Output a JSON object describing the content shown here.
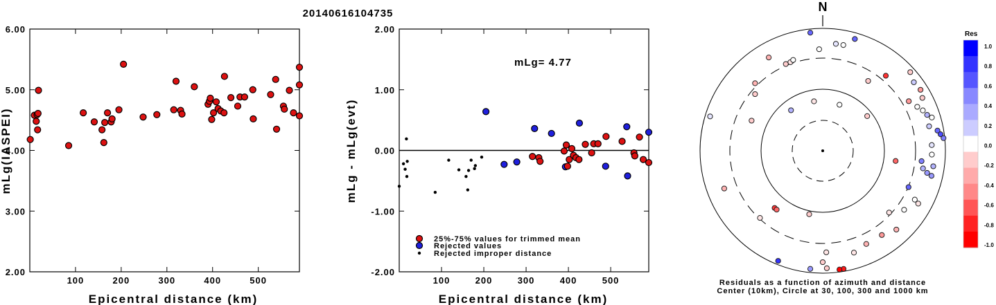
{
  "title": "20140616104735",
  "colors": {
    "accepted": "#dd1111",
    "rejected": "#1f1fdd",
    "improper": "#000000"
  },
  "chart_data": [
    {
      "type": "scatter",
      "title": "",
      "xlabel": "Epicentral distance (km)",
      "ylabel": "mLg(IASPEI)",
      "xlim": [
        0,
        590
      ],
      "ylim": [
        2.0,
        6.0
      ],
      "xticks": [
        "100",
        "200",
        "300",
        "400",
        "500"
      ],
      "xtick_values": [
        100,
        200,
        300,
        400,
        500
      ],
      "yticks": [
        "2.00",
        "3.00",
        "4.00",
        "5.00",
        "6.00"
      ],
      "ytick_values": [
        2,
        3,
        4,
        5,
        6
      ],
      "series": [
        {
          "points": [
            [
              1,
              4.18
            ],
            [
              10,
              4.58
            ],
            [
              14,
              4.48
            ],
            [
              16,
              4.59
            ],
            [
              17,
              4.34
            ],
            [
              18,
              4.61
            ],
            [
              19,
              4.99
            ],
            [
              85,
              4.08
            ],
            [
              117,
              4.62
            ],
            [
              141,
              4.47
            ],
            [
              158,
              4.34
            ],
            [
              162,
              4.13
            ],
            [
              164,
              4.46
            ],
            [
              170,
              4.62
            ],
            [
              178,
              4.47
            ],
            [
              180,
              4.52
            ],
            [
              195,
              4.67
            ],
            [
              205,
              5.42
            ],
            [
              248,
              4.55
            ],
            [
              278,
              4.59
            ],
            [
              315,
              4.67
            ],
            [
              320,
              5.14
            ],
            [
              330,
              4.66
            ],
            [
              333,
              4.6
            ],
            [
              360,
              5.05
            ],
            [
              390,
              4.76
            ],
            [
              393,
              4.81
            ],
            [
              395,
              4.86
            ],
            [
              398,
              4.51
            ],
            [
              402,
              4.62
            ],
            [
              408,
              4.8
            ],
            [
              412,
              4.69
            ],
            [
              418,
              4.65
            ],
            [
              425,
              4.62
            ],
            [
              426,
              5.22
            ],
            [
              440,
              4.87
            ],
            [
              455,
              4.73
            ],
            [
              460,
              4.88
            ],
            [
              470,
              4.88
            ],
            [
              488,
              5.0
            ],
            [
              489,
              4.52
            ],
            [
              527,
              4.92
            ],
            [
              538,
              5.17
            ],
            [
              540,
              4.35
            ],
            [
              555,
              4.73
            ],
            [
              557,
              4.68
            ],
            [
              568,
              4.99
            ],
            [
              577,
              4.62
            ],
            [
              590,
              5.08
            ],
            [
              592,
              5.37
            ],
            [
              592,
              4.57
            ]
          ]
        }
      ]
    },
    {
      "type": "scatter",
      "title": "",
      "xlabel": "Epicentral distance (km)",
      "ylabel": "mLg - mLg(evt)",
      "annotation": "mLg= 4.77",
      "xlim": [
        0,
        590
      ],
      "ylim": [
        -2.0,
        2.0
      ],
      "xticks": [
        "100",
        "200",
        "300",
        "400",
        "500"
      ],
      "xtick_values": [
        100,
        200,
        300,
        400,
        500
      ],
      "yticks": [
        "-2.00",
        "-1.00",
        "0.00",
        "1.00",
        "2.00"
      ],
      "ytick_values": [
        -2,
        -1,
        0,
        1,
        2
      ],
      "legend": [
        {
          "label": "25%-75% values for trimmed mean",
          "kind": "accepted"
        },
        {
          "label": "Rejected values",
          "kind": "rejected"
        },
        {
          "label": "Rejected improper distance",
          "kind": "improper"
        }
      ],
      "series": [
        {
          "kind": "improper",
          "points": [
            [
              0,
              -0.59
            ],
            [
              10,
              -0.22
            ],
            [
              14,
              -0.31
            ],
            [
              17,
              0.19
            ],
            [
              18,
              -0.43
            ],
            [
              19,
              -0.18
            ],
            [
              85,
              -0.69
            ],
            [
              117,
              -0.16
            ],
            [
              141,
              -0.32
            ],
            [
              158,
              -0.43
            ],
            [
              162,
              -0.65
            ],
            [
              164,
              -0.33
            ],
            [
              170,
              -0.16
            ],
            [
              178,
              -0.3
            ],
            [
              180,
              -0.25
            ],
            [
              195,
              -0.11
            ]
          ]
        },
        {
          "kind": "rejected",
          "points": [
            [
              205,
              0.64
            ],
            [
              248,
              -0.23
            ],
            [
              278,
              -0.19
            ],
            [
              320,
              0.36
            ],
            [
              360,
              0.28
            ],
            [
              393,
              -0.27
            ],
            [
              426,
              0.45
            ],
            [
              488,
              -0.26
            ],
            [
              538,
              0.39
            ],
            [
              540,
              -0.42
            ],
            [
              590,
              0.3
            ]
          ]
        },
        {
          "kind": "accepted",
          "points": [
            [
              315,
              -0.1
            ],
            [
              330,
              -0.12
            ],
            [
              333,
              -0.18
            ],
            [
              390,
              -0.01
            ],
            [
              395,
              0.09
            ],
            [
              398,
              -0.26
            ],
            [
              402,
              -0.15
            ],
            [
              408,
              0.03
            ],
            [
              412,
              -0.08
            ],
            [
              418,
              -0.12
            ],
            [
              425,
              -0.15
            ],
            [
              440,
              0.1
            ],
            [
              455,
              -0.04
            ],
            [
              460,
              0.11
            ],
            [
              470,
              0.11
            ],
            [
              489,
              0.23
            ],
            [
              527,
              0.15
            ],
            [
              555,
              -0.04
            ],
            [
              557,
              -0.09
            ],
            [
              568,
              0.22
            ],
            [
              577,
              -0.15
            ],
            [
              590,
              -0.2
            ]
          ]
        }
      ]
    },
    {
      "type": "polar",
      "north_label": "N",
      "caption_line1": "Residuals as a function of azimuth and distance",
      "caption_line2": "Center (10km), Circle at 30, 100, 300 and 1000 km",
      "colorbar": {
        "title": "Res",
        "labels": [
          "1.0",
          "0.8",
          "0.6",
          "0.4",
          "0.2",
          "0.0",
          "-0.2",
          "-0.4",
          "-0.6",
          "-0.8",
          "-1.0"
        ],
        "colors": [
          "#0000ff",
          "#3333ff",
          "#5555ff",
          "#8888ff",
          "#aaaaff",
          "#ccccff",
          "#ffffff",
          "#ffcccc",
          "#ffaaaa",
          "#ff8888",
          "#ff5555",
          "#ff2222",
          "#ff0000"
        ]
      },
      "stations": [
        {
          "az": 0,
          "r": 0.0,
          "res": 0.0
        },
        {
          "az": 350,
          "r": 0.41,
          "res": -0.1
        },
        {
          "az": 20,
          "r": 0.4,
          "res": 0.0
        },
        {
          "az": 52,
          "r": 0.46,
          "res": -0.2
        },
        {
          "az": 322,
          "r": 0.42,
          "res": 0.3
        },
        {
          "az": 98,
          "r": 0.6,
          "res": -0.6
        },
        {
          "az": 192,
          "r": 0.53,
          "res": -0.2
        },
        {
          "az": 178,
          "r": 0.83,
          "res": -0.1
        },
        {
          "az": 358,
          "r": 0.83,
          "res": 0.0
        },
        {
          "az": 354,
          "r": 0.97,
          "res": 0.6
        },
        {
          "az": 16,
          "r": 0.95,
          "res": 0.6
        },
        {
          "az": 7,
          "r": 0.88,
          "res": 0.1
        },
        {
          "az": 11,
          "r": 0.88,
          "res": 0.0
        },
        {
          "az": 330,
          "r": 0.88,
          "res": -0.3
        },
        {
          "az": 337,
          "r": 0.77,
          "res": -0.2
        },
        {
          "az": 340,
          "r": 0.77,
          "res": -0.1
        },
        {
          "az": 342,
          "r": 0.78,
          "res": 0.0
        },
        {
          "az": 315,
          "r": 0.78,
          "res": -0.3
        },
        {
          "az": 33,
          "r": 0.68,
          "res": -0.2
        },
        {
          "az": 40,
          "r": 0.8,
          "res": -0.8
        },
        {
          "az": 48,
          "r": 0.96,
          "res": -0.2
        },
        {
          "az": 53,
          "r": 0.93,
          "res": 0.2
        },
        {
          "az": 58,
          "r": 0.94,
          "res": -0.4
        },
        {
          "az": 60,
          "r": 0.81,
          "res": -0.4
        },
        {
          "az": 62,
          "r": 0.92,
          "res": -0.2
        },
        {
          "az": 65,
          "r": 0.85,
          "res": 0.0
        },
        {
          "az": 68,
          "r": 0.88,
          "res": 0.0
        },
        {
          "az": 71,
          "r": 0.9,
          "res": 0.3
        },
        {
          "az": 73,
          "r": 0.93,
          "res": 0.0
        },
        {
          "az": 77,
          "r": 0.89,
          "res": 0.2
        },
        {
          "az": 80,
          "r": 0.95,
          "res": 0.6
        },
        {
          "az": 82,
          "r": 0.97,
          "res": 0.7
        },
        {
          "az": 84,
          "r": 0.99,
          "res": 0.5
        },
        {
          "az": 87,
          "r": 0.89,
          "res": 0.1
        },
        {
          "az": 92,
          "r": 0.89,
          "res": 0.0
        },
        {
          "az": 96,
          "r": 0.81,
          "res": 0.5
        },
        {
          "az": 98,
          "r": 0.91,
          "res": 0.3
        },
        {
          "az": 100,
          "r": 0.83,
          "res": 0.3
        },
        {
          "az": 102,
          "r": 0.87,
          "res": 0.4
        },
        {
          "az": 103,
          "r": 0.91,
          "res": 0.4
        },
        {
          "az": 113,
          "r": 0.76,
          "res": 0.6
        },
        {
          "az": 118,
          "r": 0.85,
          "res": 0.0
        },
        {
          "az": 119,
          "r": 0.89,
          "res": -0.1
        },
        {
          "az": 126,
          "r": 0.82,
          "res": 0.0
        },
        {
          "az": 133,
          "r": 0.74,
          "res": -0.1
        },
        {
          "az": 137,
          "r": 0.88,
          "res": -0.3
        },
        {
          "az": 145,
          "r": 0.84,
          "res": -0.4
        },
        {
          "az": 155,
          "r": 0.84,
          "res": -0.3
        },
        {
          "az": 163,
          "r": 0.87,
          "res": -0.1
        },
        {
          "az": 170,
          "r": 0.98,
          "res": -0.9
        },
        {
          "az": 172,
          "r": 0.98,
          "res": -1.0
        },
        {
          "az": 178,
          "r": 0.96,
          "res": -0.2
        },
        {
          "az": 186,
          "r": 0.97,
          "res": 0.4
        },
        {
          "az": 180,
          "r": 0.91,
          "res": -0.2
        },
        {
          "az": 202,
          "r": 0.97,
          "res": 0.8
        },
        {
          "az": 223,
          "r": 0.75,
          "res": -0.1
        },
        {
          "az": 220,
          "r": 0.61,
          "res": -0.8
        },
        {
          "az": 218,
          "r": 0.61,
          "res": -0.6
        },
        {
          "az": 249,
          "r": 0.86,
          "res": -0.3
        },
        {
          "az": 287,
          "r": 0.96,
          "res": 0.1
        },
        {
          "az": 293,
          "r": 0.63,
          "res": -0.2
        },
        {
          "az": 310,
          "r": 0.72,
          "res": -0.2
        }
      ]
    }
  ]
}
